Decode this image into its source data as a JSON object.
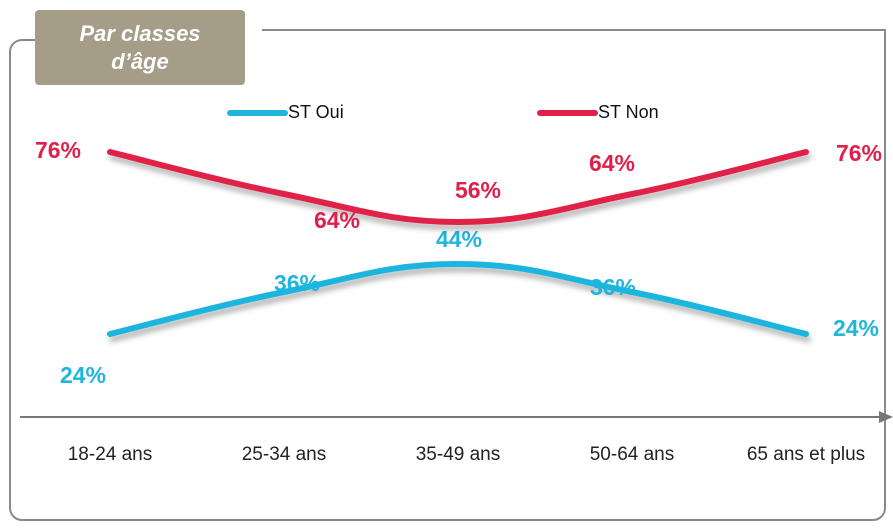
{
  "chart_data": {
    "type": "line",
    "title": "Par classes d’âge",
    "categories": [
      "18-24 ans",
      "25-34 ans",
      "35-49 ans",
      "50-64 ans",
      "65 ans et plus"
    ],
    "series": [
      {
        "name": "ST Oui",
        "color": "#1fb5dd",
        "values": [
          24,
          36,
          44,
          36,
          24
        ],
        "value_labels": [
          "24%",
          "36%",
          "44%",
          "36%",
          "24%"
        ]
      },
      {
        "name": "ST Non",
        "color": "#e0204a",
        "values": [
          76,
          64,
          56,
          64,
          76
        ],
        "value_labels": [
          "76%",
          "64%",
          "56%",
          "64%",
          "76%"
        ]
      }
    ],
    "legend": "top"
  }
}
